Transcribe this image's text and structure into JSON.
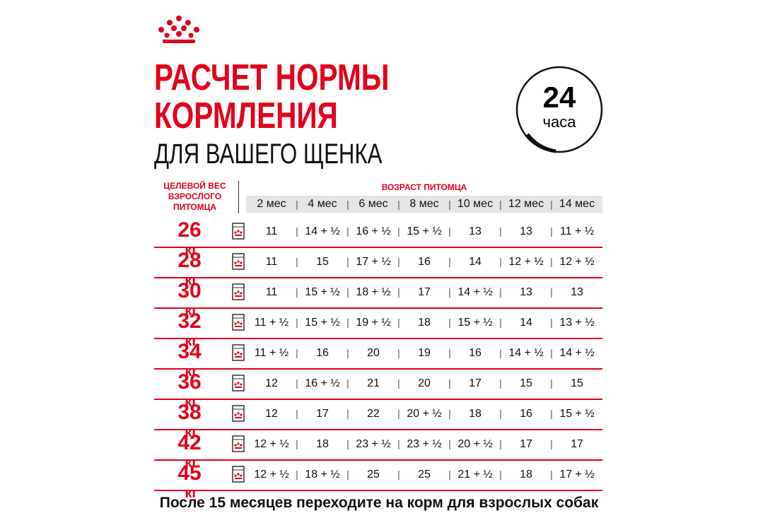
{
  "header": {
    "title_lines": [
      "РАСЧЕТ НОРМЫ",
      "КОРМЛЕНИЯ"
    ],
    "subtitle": "ДЛЯ ВАШЕГО ЩЕНКА",
    "badge": {
      "number": "24",
      "unit": "часа"
    }
  },
  "table": {
    "weight_header": [
      "ЦЕЛЕВОЙ ВЕС",
      "ВЗРОСЛОГО",
      "ПИТОМЦА"
    ],
    "age_header": "ВОЗРАСТ ПИТОМЦА",
    "weight_unit": "кг",
    "columns": [
      "2 мес",
      "4 мес",
      "6 мес",
      "8 мес",
      "10 мес",
      "12 мес",
      "14 мес"
    ],
    "rows": [
      {
        "weight": "26",
        "cells": [
          "11",
          "14 + ½",
          "16 + ½",
          "15 + ½",
          "13",
          "13",
          "11 + ½"
        ]
      },
      {
        "weight": "28",
        "cells": [
          "11",
          "15",
          "17 + ½",
          "16",
          "14",
          "12 + ½",
          "12 + ½"
        ]
      },
      {
        "weight": "30",
        "cells": [
          "11",
          "15 + ½",
          "18 + ½",
          "17",
          "14 + ½",
          "13",
          "13"
        ]
      },
      {
        "weight": "32",
        "cells": [
          "11 + ½",
          "15 + ½",
          "19 + ½",
          "18",
          "15 + ½",
          "14",
          "13 + ½"
        ]
      },
      {
        "weight": "34",
        "cells": [
          "11 + ½",
          "16",
          "20",
          "19",
          "16",
          "14 + ½",
          "14 + ½"
        ]
      },
      {
        "weight": "36",
        "cells": [
          "12",
          "16 + ½",
          "21",
          "20",
          "17",
          "15",
          "15"
        ]
      },
      {
        "weight": "38",
        "cells": [
          "12",
          "17",
          "22",
          "20 + ½",
          "18",
          "16",
          "15 + ½"
        ]
      },
      {
        "weight": "42",
        "cells": [
          "12 + ½",
          "18",
          "23 + ½",
          "23 + ½",
          "20 + ½",
          "17",
          "17"
        ]
      },
      {
        "weight": "45",
        "cells": [
          "12 + ½",
          "18 + ½",
          "25",
          "25",
          "21 + ½",
          "18",
          "17 + ½"
        ]
      }
    ]
  },
  "footer": "После 15 месяцев переходите на корм для взрослых собак"
}
